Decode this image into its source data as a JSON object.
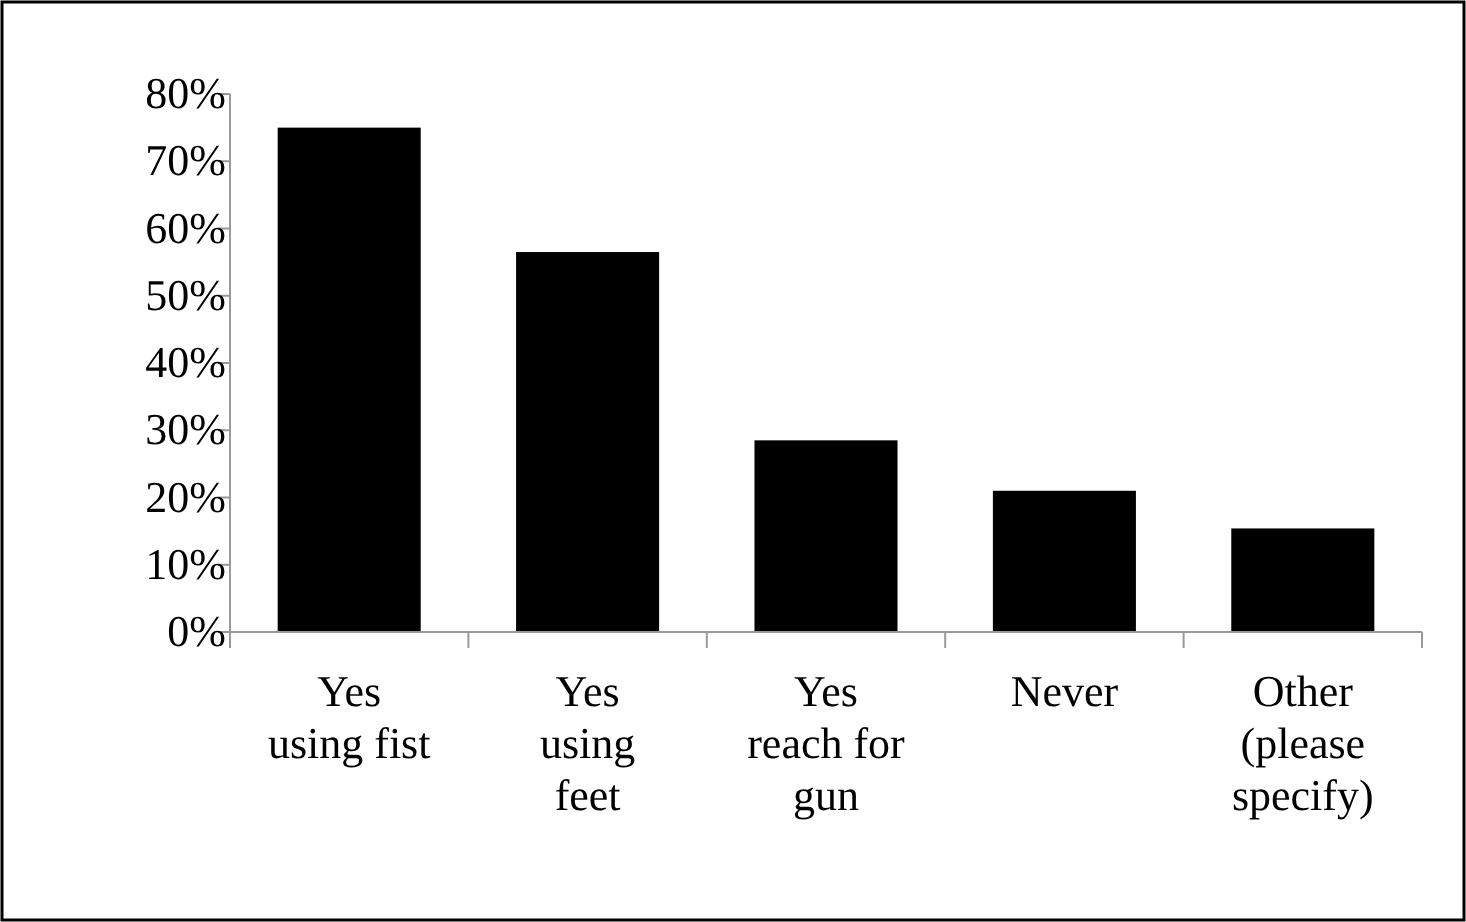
{
  "chart_data": {
    "type": "bar",
    "categories": [
      "Yes\nusing fist",
      "Yes\nusing\nfeet",
      "Yes\nreach for\ngun",
      "Never",
      "Other\n(please\nspecify)"
    ],
    "values": [
      75,
      56.5,
      28.5,
      21,
      15.4
    ],
    "color": "#000000",
    "ylim": [
      0,
      80
    ],
    "yticks": [
      {
        "value": 0,
        "label": "0%"
      },
      {
        "value": 10,
        "label": "10%"
      },
      {
        "value": 20,
        "label": "20%"
      },
      {
        "value": 30,
        "label": "30%"
      },
      {
        "value": 40,
        "label": "40%"
      },
      {
        "value": 50,
        "label": "50%"
      },
      {
        "value": 60,
        "label": "60%"
      },
      {
        "value": 70,
        "label": "70%"
      },
      {
        "value": 80,
        "label": "80%"
      }
    ],
    "grid": false
  }
}
